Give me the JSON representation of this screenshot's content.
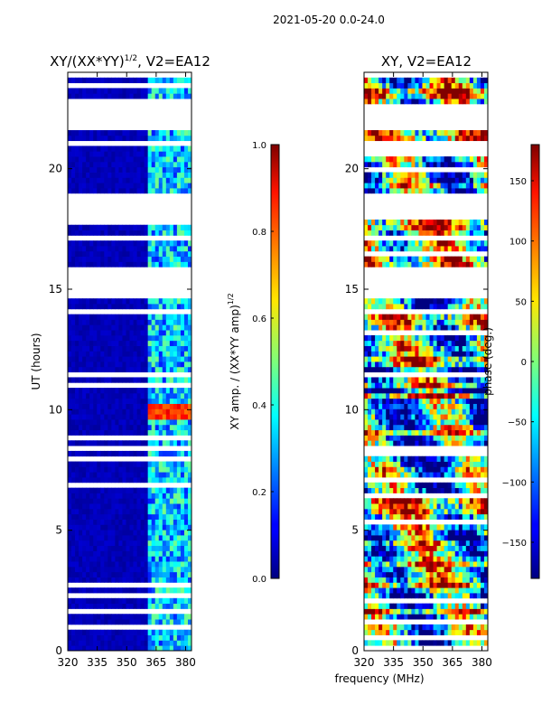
{
  "suptitle": "2021-05-20 0.0-24.0",
  "xlabel_shared": "frequency (MHz)",
  "panels": [
    {
      "title": "XY/(XX*YY)",
      "title_exponent": "1/2",
      "title_suffix": ", V2=EA12",
      "ylabel": "UT (hours)",
      "colorbar_label": "XY amp. / (XX*YY amp)",
      "colorbar_label_exponent": "1/2"
    },
    {
      "title": "XY, V2=EA12",
      "colorbar_label": "phase (deg.)"
    }
  ],
  "chart_data": [
    {
      "type": "heatmap",
      "title": "XY/(XX*YY)^1/2, V2=EA12",
      "xlabel": "frequency (MHz)",
      "ylabel": "UT (hours)",
      "xlim": [
        320,
        383
      ],
      "ylim": [
        0,
        24
      ],
      "x_ticks": [
        320,
        335,
        350,
        365,
        380
      ],
      "y_ticks": [
        0,
        5,
        10,
        15,
        20
      ],
      "colormap": "jet",
      "color_range": [
        0.0,
        1.0
      ],
      "colorbar_ticks": [
        "0.0",
        "0.2",
        "0.4",
        "0.6",
        "0.8",
        "1.0"
      ],
      "empty_time_ranges_hours": [
        [
          21.6,
          22.7
        ],
        [
          18.0,
          19.0
        ],
        [
          14.7,
          16.0
        ]
      ],
      "low_band_value": 0.03,
      "high_band_start_mhz": 360,
      "peak_time_hours": 9.8,
      "peak_value": 0.9
    },
    {
      "type": "heatmap",
      "title": "XY, V2=EA12",
      "xlabel": "frequency (MHz)",
      "xlim": [
        320,
        383
      ],
      "ylim": [
        0,
        24
      ],
      "x_ticks": [
        320,
        335,
        350,
        365,
        380
      ],
      "y_ticks": [
        0,
        5,
        10,
        15,
        20
      ],
      "colormap": "jet",
      "color_range": [
        -180,
        180
      ],
      "colorbar_ticks": [
        "−150",
        "−100",
        "−50",
        "0",
        "50",
        "100",
        "150"
      ],
      "colorbar_tick_values": [
        -150,
        -100,
        -50,
        0,
        50,
        100,
        150
      ],
      "empty_time_ranges_hours": [
        [
          21.6,
          22.7
        ],
        [
          18.0,
          19.0
        ],
        [
          14.7,
          16.0
        ]
      ]
    }
  ]
}
